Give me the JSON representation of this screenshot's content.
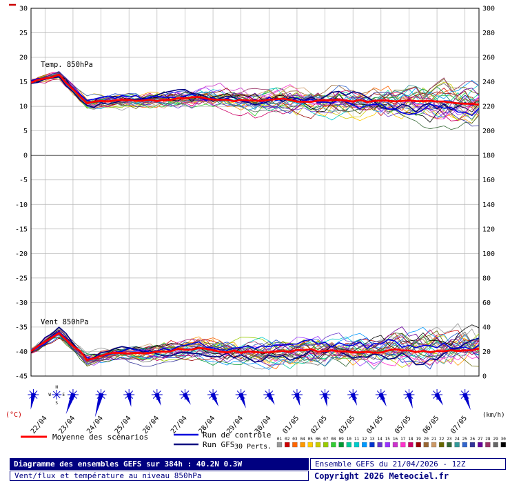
{
  "chart_data": {
    "type": "line",
    "title": "Diagramme des ensembles GEFS sur 384h : 40.2N 0.3W",
    "subtitle": "Vent/flux et température au niveau 850hPa",
    "run_info": "Ensemble GEFS du 21/04/2026 - 12Z",
    "copyright": "Copyright 2026 Meteociel.fr",
    "temp_section_label": "Temp. 850hPa",
    "wind_section_label": "Vent 850hPa",
    "left_axis": {
      "unit": "(°C)",
      "min": -45,
      "max": 30,
      "step": 5,
      "unit_color": "#cc0000"
    },
    "right_axis": {
      "unit": "(km/h)",
      "min": 0,
      "max": 300,
      "step": 20
    },
    "total_hours": 384,
    "x_labels": [
      "22/04",
      "23/04",
      "24/04",
      "25/04",
      "26/04",
      "27/04",
      "28/04",
      "29/04",
      "30/04",
      "01/05",
      "02/05",
      "03/05",
      "04/05",
      "05/05",
      "06/05",
      "07/05"
    ],
    "temp_mean_daily": [
      15.0,
      16.4,
      10.6,
      11.3,
      11.0,
      11.5,
      11.8,
      11.3,
      11.0,
      11.4,
      10.9,
      11.3,
      11.1,
      10.9,
      11.1,
      10.7,
      10.3
    ],
    "wind_mean_daily": [
      20,
      36,
      14,
      19,
      18,
      21,
      22,
      20,
      19,
      20,
      21,
      20,
      19,
      21,
      20,
      21,
      22
    ],
    "temp_spread_start_end": [
      0.5,
      3.2
    ],
    "wind_spread_start_end": [
      2.5,
      13
    ],
    "members": 30,
    "mean_color": "#ff0000",
    "control_color": "#0000dd",
    "gfs_color": "#000080",
    "member_colors": [
      "#999999",
      "#cc0000",
      "#ff6600",
      "#ff9900",
      "#ffcc00",
      "#cccc00",
      "#99cc00",
      "#33cc33",
      "#009933",
      "#00cc99",
      "#00cccc",
      "#0099ff",
      "#0033cc",
      "#6633cc",
      "#9933ff",
      "#cc33cc",
      "#ff33cc",
      "#cc0066",
      "#990000",
      "#996633",
      "#cc9966",
      "#666600",
      "#336633",
      "#339999",
      "#3366cc",
      "#333399",
      "#660099",
      "#993366",
      "#666666",
      "#000000"
    ],
    "wind_arrow_color": "#0000cc",
    "wind_arrows": [
      {
        "dir": 190,
        "len": 22
      },
      {
        "dir": 200,
        "len": 30
      },
      {
        "dir": 195,
        "len": 34
      },
      {
        "dir": 170,
        "len": 18
      },
      {
        "dir": 160,
        "len": 17
      },
      {
        "dir": 150,
        "len": 17
      },
      {
        "dir": 155,
        "len": 19
      },
      {
        "dir": 160,
        "len": 21
      },
      {
        "dir": 150,
        "len": 17
      },
      {
        "dir": 165,
        "len": 17
      },
      {
        "dir": 170,
        "len": 18
      },
      {
        "dir": 160,
        "len": 17
      },
      {
        "dir": 155,
        "len": 19
      },
      {
        "dir": 165,
        "len": 21
      },
      {
        "dir": 150,
        "len": 18
      },
      {
        "dir": 160,
        "len": 24
      }
    ],
    "compass": {
      "n": "N",
      "e": "E",
      "s": "S",
      "w": "W"
    }
  },
  "legend": {
    "mean_label": "Moyenne des scénarios",
    "control_label": "Run de contrôle",
    "gfs_label": "Run GFS",
    "perts_label": "30 Perts.",
    "pert_numbers": [
      "01",
      "02",
      "03",
      "04",
      "05",
      "06",
      "07",
      "08",
      "09",
      "10",
      "11",
      "12",
      "13",
      "14",
      "15",
      "16",
      "17",
      "18",
      "19",
      "20",
      "21",
      "22",
      "23",
      "24",
      "25",
      "26",
      "27",
      "28",
      "29",
      "30"
    ]
  },
  "footer": {
    "title": "Diagramme des ensembles GEFS sur 384h : 40.2N 0.3W",
    "subtitle": "Vent/flux et température au niveau 850hPa",
    "run_info": "Ensemble GEFS du 21/04/2026 - 12Z",
    "copyright": "Copyright 2026 Meteociel.fr"
  }
}
